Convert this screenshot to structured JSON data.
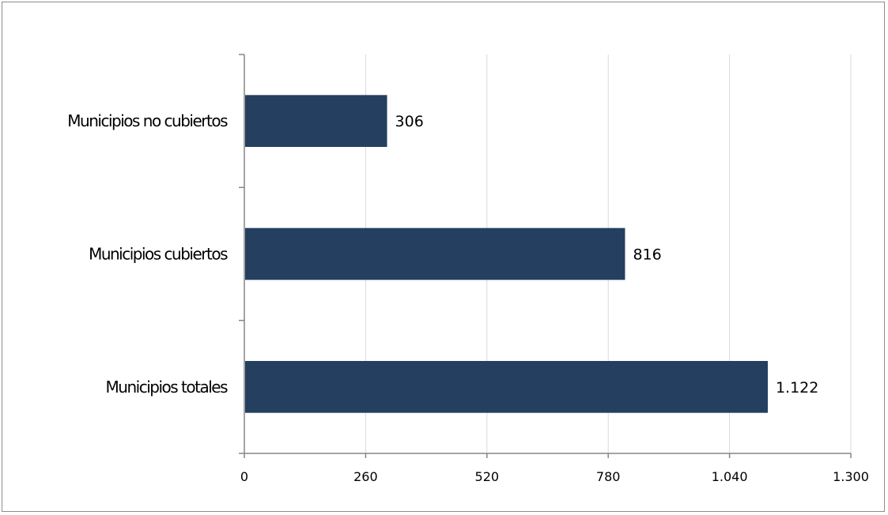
{
  "chart_data": {
    "type": "bar",
    "orientation": "horizontal",
    "categories": [
      "Municipios no cubiertos",
      "Municipios cubiertos",
      "Municipios totales"
    ],
    "values": [
      306,
      816,
      1122
    ],
    "data_labels": [
      "306",
      "816",
      "1.122"
    ],
    "xlim": [
      0,
      1300
    ],
    "x_ticks": [
      0,
      260,
      520,
      780,
      1040,
      1300
    ],
    "x_tick_labels": [
      "0",
      "260",
      "520",
      "780",
      "1.040",
      "1.300"
    ],
    "grid": "vertical",
    "legend": "none",
    "title": "",
    "xlabel": "",
    "ylabel": "",
    "colors": {
      "bar": "#243F60",
      "grid": "#d9d9d9",
      "axis": "#868686",
      "frame": "#8c8c8c"
    }
  }
}
